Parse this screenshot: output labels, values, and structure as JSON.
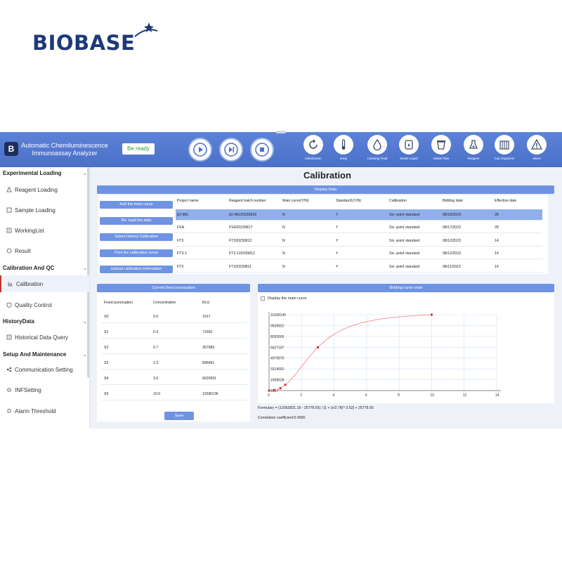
{
  "brand": {
    "name": "BIOBASE"
  },
  "app": {
    "title": "Automatic Chemiluminescence Immunoassay Analyzer",
    "status": "Be ready",
    "controls": [
      "play-icon",
      "skip-icon",
      "stop-icon"
    ],
    "tools": [
      {
        "label": "Initialization",
        "icon": "refresh-icon"
      },
      {
        "label": "temp",
        "icon": "thermometer-icon"
      },
      {
        "label": "Cleaning Fluid",
        "icon": "droplet-icon"
      },
      {
        "label": "Waste Liquid",
        "icon": "bottle-icon"
      },
      {
        "label": "Waste Pipe",
        "icon": "bucket-icon"
      },
      {
        "label": "Reagent",
        "icon": "flask-icon"
      },
      {
        "label": "Cup Organizer",
        "icon": "rack-icon"
      },
      {
        "label": "Alarm",
        "icon": "warning-icon"
      }
    ]
  },
  "sidebar": {
    "groups": [
      {
        "label": "Experimental Loading",
        "items": [
          "Reagent Loading",
          "Sample Loading",
          "WorkingList",
          "Result"
        ]
      },
      {
        "label": "Calibration And QC",
        "items": [
          "Calibration",
          "Quality Control"
        ]
      },
      {
        "label": "HistoryData",
        "items": [
          "Historical Data Query"
        ]
      },
      {
        "label": "Setup And Maintenance",
        "items": [
          "Communication Setting",
          "INFSetting",
          "Alarm Threshold"
        ]
      }
    ],
    "active": "Calibration"
  },
  "main": {
    "title": "Calibration",
    "display_header": "Display Data",
    "buttons": [
      "Add the main curve",
      "Re -load the data",
      "Select History Calibration",
      "Print the calibration curve",
      "Upload calibration information"
    ],
    "columns": [
      "Project name",
      "Reagent batch number",
      "Main curve(Y/N)",
      "Standard1(Y/N)",
      "Calibration",
      "Bidding date",
      "Effective date"
    ],
    "rows": [
      [
        "β2-MG",
        "β2-MG20230818",
        "N",
        "Y",
        "Six -point standard",
        "08/18/2023",
        "28"
      ],
      [
        "FSH",
        "FSH20230817",
        "N",
        "Y",
        "Six -point standard",
        "08/17/2023",
        "28"
      ],
      [
        "FT3",
        "FT320230812",
        "N",
        "Y",
        "Six -point standard",
        "08/12/2023",
        "14"
      ],
      [
        "FT3-1",
        "FT3-120230812",
        "N",
        "Y",
        "Six -point standard",
        "08/12/2023",
        "14"
      ],
      [
        "FT3",
        "FT320230811",
        "N",
        "Y",
        "Six -point standard",
        "08/11/2023",
        "14"
      ]
    ],
    "selected_row": 0,
    "fixed": {
      "header": "Current fixed punctuation",
      "columns": [
        "Fixed punctuation",
        "Concentration",
        "RLU"
      ],
      "rows": [
        [
          "S0",
          "0.0",
          "1917"
        ],
        [
          "S1",
          "0.3",
          "71650"
        ],
        [
          "S2",
          "0.7",
          "357083"
        ],
        [
          "S3",
          "1.0",
          "896491"
        ],
        [
          "S4",
          "3.0",
          "6620651"
        ],
        [
          "S5",
          "10.0",
          "11596136"
        ]
      ],
      "save_label": "Save"
    },
    "chart": {
      "header": "Bidding curve chart",
      "checkbox_label": "Display the main curve",
      "formula": "Formulary = (12052831.19 - 25778.55) / [1 + (x/2.78)^-2.52] + 25778.55",
      "correlation": "Correlation coefficient:0.9990"
    }
  },
  "chart_data": {
    "type": "scatter",
    "series": [
      {
        "x": [
          0.0,
          0.3,
          0.7,
          1.0,
          3.0,
          10.0
        ],
        "y": [
          1917,
          71650,
          357083,
          896491,
          6620651,
          11596136
        ]
      }
    ],
    "curve": {
      "a": 12052831.19,
      "d": 25778.55,
      "c": 2.78,
      "b": 2.52
    },
    "xticks": [
      "0",
      "2",
      "4",
      "6",
      "8",
      "10",
      "12",
      "14"
    ],
    "yticks": [
      "1917",
      "1658528",
      "3314552",
      "4970870",
      "6627187",
      "8283505",
      "9939822",
      "11596140"
    ],
    "xlim": [
      0,
      14
    ],
    "ylim": [
      1917,
      11596140
    ],
    "grid": true,
    "colors": {
      "curve": "#f08080",
      "points": "#d62728",
      "grid": "#cde0f5"
    }
  }
}
